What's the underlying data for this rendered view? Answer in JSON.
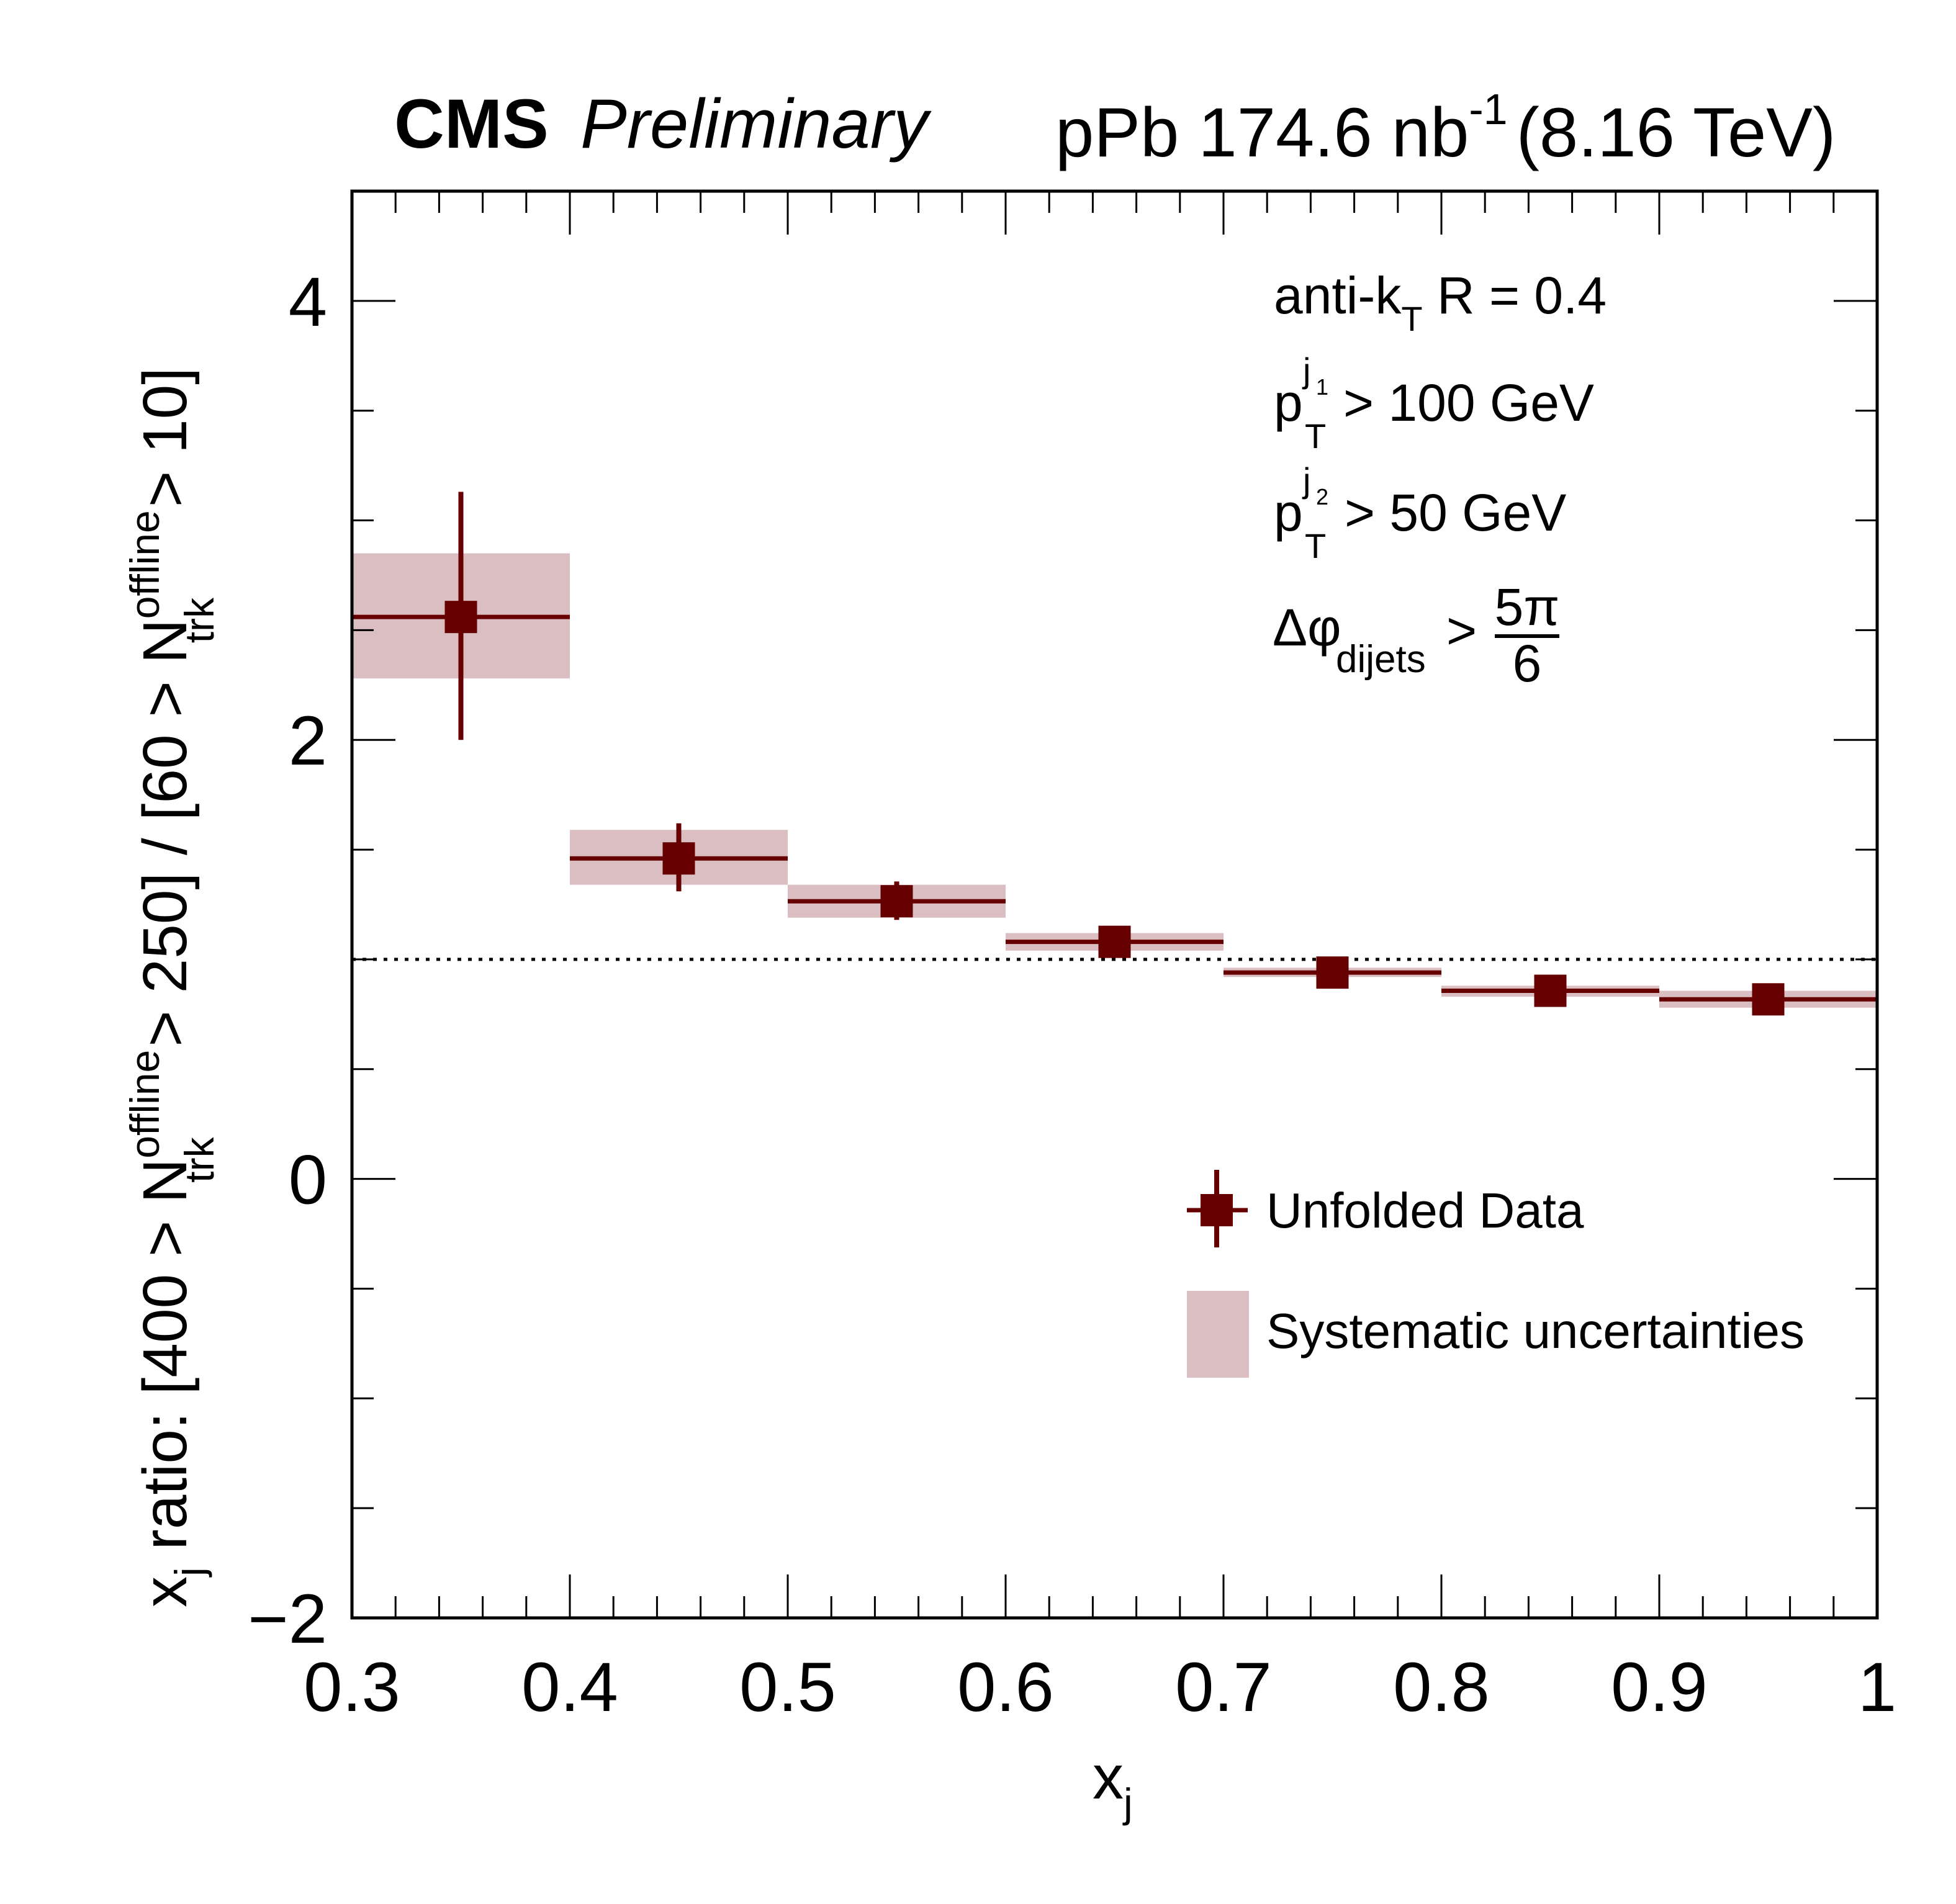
{
  "header": {
    "experiment": "CMS",
    "status": "Preliminary",
    "dataset_prefix": "pPb 174.6 nb",
    "dataset_exponent": "-1",
    "energy": "(8.16 TeV)"
  },
  "annotations": {
    "algo_main": "anti-k",
    "algo_sub": "T",
    "algo_rest": " R = 0.4",
    "pt1_base": "p",
    "pt1_sub": "T",
    "pt1_sup": "j",
    "pt1_supsub": "1",
    "pt1_rest": "> 100 GeV",
    "pt2_base": "p",
    "pt2_sub": "T",
    "pt2_sup": "j",
    "pt2_supsub": "2",
    "pt2_rest": "> 50 GeV",
    "dphi_base": "Δφ",
    "dphi_sub": "dijets",
    "dphi_gt": ">",
    "dphi_num": "5π",
    "dphi_den": "6"
  },
  "legend": {
    "entries": [
      {
        "label": "Unfolded Data",
        "kind": "marker"
      },
      {
        "label": "Systematic uncertainties",
        "kind": "box"
      }
    ]
  },
  "colors": {
    "data": "#660000",
    "syst_band": "#dbbec1",
    "axis": "#000000"
  },
  "chart_data": {
    "type": "scatter",
    "title": "CMS Preliminary  pPb 174.6 nb^-1 (8.16 TeV)",
    "xlabel": "x_j",
    "ylabel": "x_j ratio: [400 > N_trk^offline > 250] / [60 > N_trk^offline > 10]",
    "xlim": [
      0.3,
      1.0
    ],
    "ylim": [
      -2,
      4.5
    ],
    "x_ticks": [
      0.3,
      0.4,
      0.5,
      0.6,
      0.7,
      0.8,
      0.9,
      1.0
    ],
    "x_tick_labels": [
      "0.3",
      "0.4",
      "0.5",
      "0.6",
      "0.7",
      "0.8",
      "0.9",
      "1"
    ],
    "y_ticks": [
      -2,
      0,
      2,
      4
    ],
    "y_tick_labels": [
      "−2",
      "0",
      "2",
      "4"
    ],
    "reference_line": {
      "y": 1,
      "style": "dotted"
    },
    "grid": false,
    "legend_position": "bottom-right",
    "series": [
      {
        "name": "Unfolded Data",
        "bins": [
          {
            "xlo": 0.3,
            "xhi": 0.4,
            "x": 0.35,
            "y": 2.56,
            "stat_lo": 2.0,
            "stat_hi": 3.13,
            "syst_lo": 2.28,
            "syst_hi": 2.85
          },
          {
            "xlo": 0.4,
            "xhi": 0.5,
            "x": 0.45,
            "y": 1.46,
            "stat_lo": 1.31,
            "stat_hi": 1.62,
            "syst_lo": 1.34,
            "syst_hi": 1.59
          },
          {
            "xlo": 0.5,
            "xhi": 0.6,
            "x": 0.55,
            "y": 1.265,
            "stat_lo": 1.18,
            "stat_hi": 1.355,
            "syst_lo": 1.19,
            "syst_hi": 1.34
          },
          {
            "xlo": 0.6,
            "xhi": 0.7,
            "x": 0.65,
            "y": 1.08,
            "stat_lo": 1.05,
            "stat_hi": 1.11,
            "syst_lo": 1.04,
            "syst_hi": 1.12
          },
          {
            "xlo": 0.7,
            "xhi": 0.8,
            "x": 0.75,
            "y": 0.94,
            "stat_lo": 0.92,
            "stat_hi": 0.96,
            "syst_lo": 0.92,
            "syst_hi": 0.962
          },
          {
            "xlo": 0.8,
            "xhi": 0.9,
            "x": 0.85,
            "y": 0.857,
            "stat_lo": 0.84,
            "stat_hi": 0.87,
            "syst_lo": 0.83,
            "syst_hi": 0.88
          },
          {
            "xlo": 0.9,
            "xhi": 1.0,
            "x": 0.95,
            "y": 0.818,
            "stat_lo": 0.8,
            "stat_hi": 0.835,
            "syst_lo": 0.78,
            "syst_hi": 0.857
          }
        ]
      }
    ]
  }
}
